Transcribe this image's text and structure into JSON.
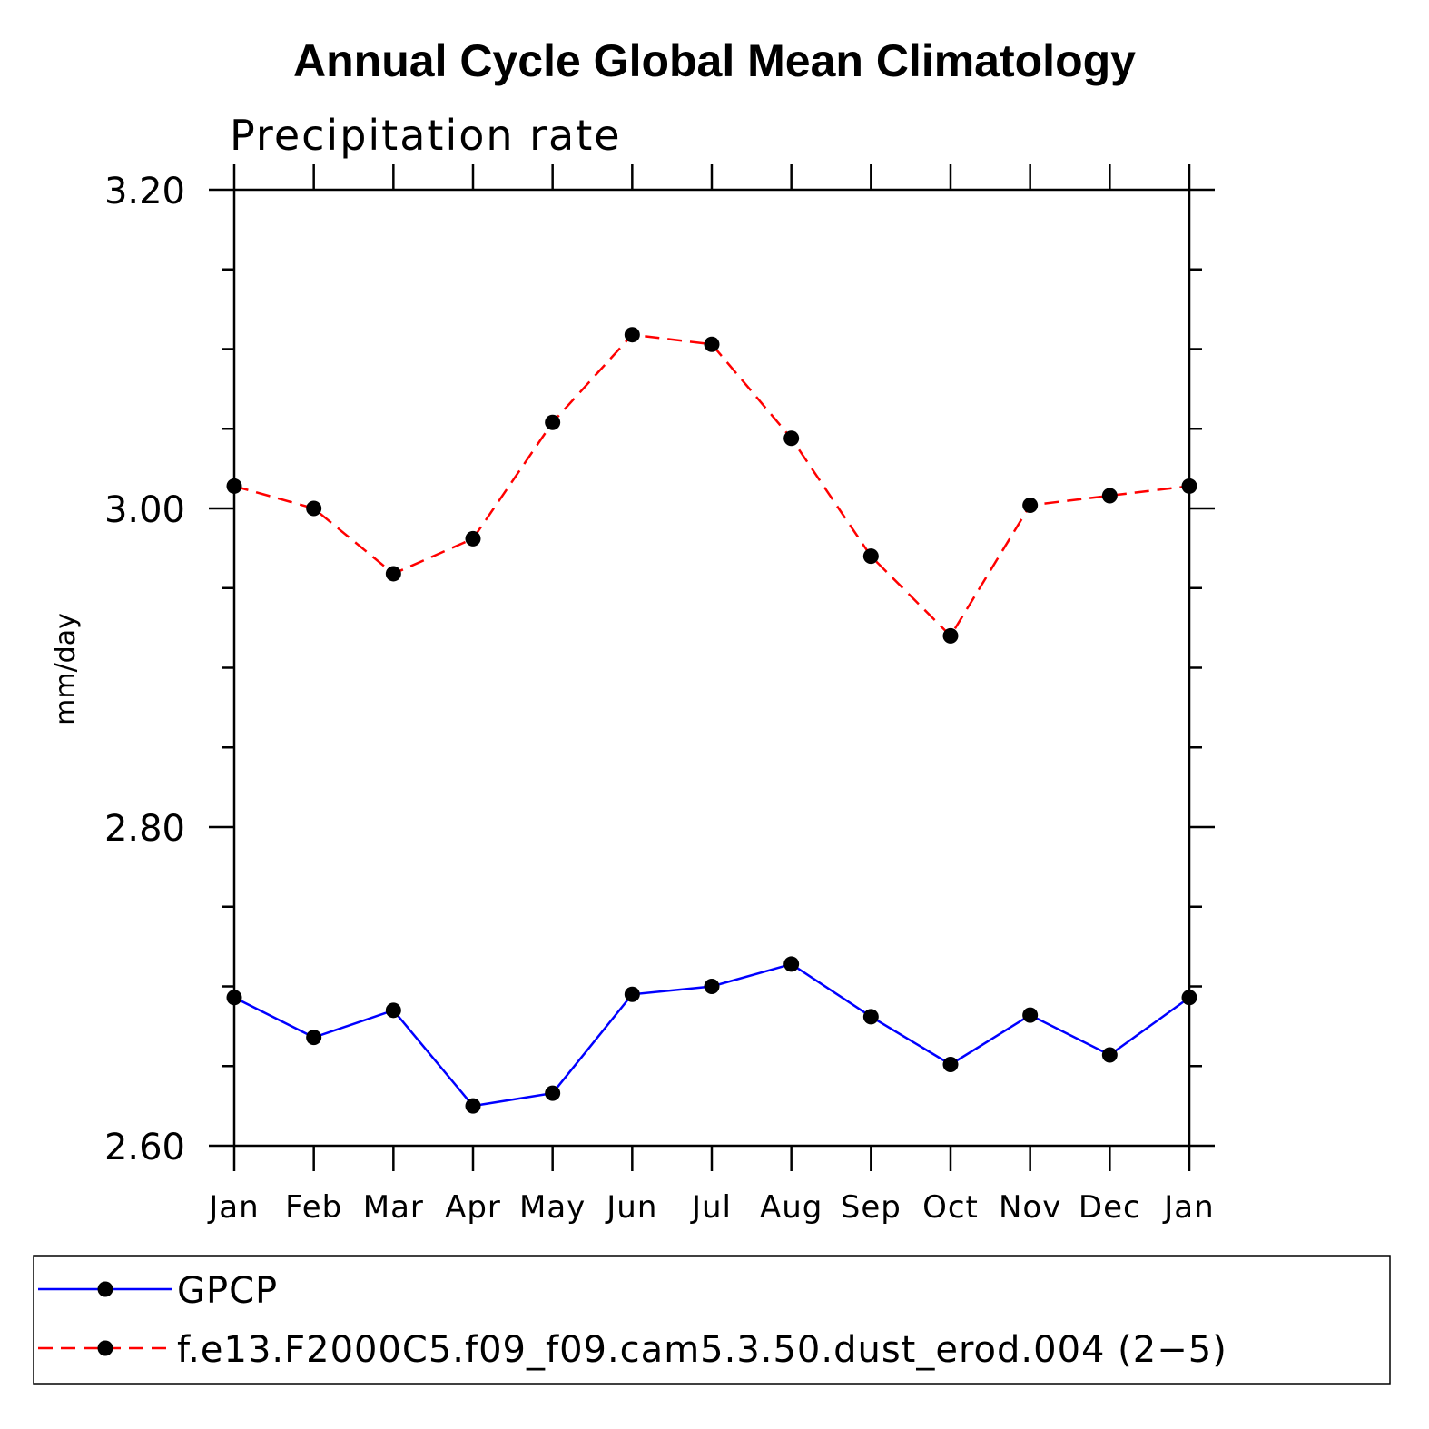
{
  "chart_data": {
    "type": "line",
    "title": "Annual Cycle Global Mean Climatology",
    "subtitle": "Precipitation rate",
    "ylabel": "mm/day",
    "xlabel": "",
    "ylim": [
      2.6,
      3.2
    ],
    "yticks": [
      "2.60",
      "2.80",
      "3.00",
      "3.20"
    ],
    "ytick_values": [
      2.6,
      2.8,
      3.0,
      3.2
    ],
    "categories": [
      "Jan",
      "Feb",
      "Mar",
      "Apr",
      "May",
      "Jun",
      "Jul",
      "Aug",
      "Sep",
      "Oct",
      "Nov",
      "Dec",
      "Jan"
    ],
    "legend_placement": "bottom",
    "grid": false,
    "series": [
      {
        "name": "GPCP",
        "color": "#0000ff",
        "dash": "solid",
        "values": [
          2.693,
          2.668,
          2.685,
          2.625,
          2.633,
          2.695,
          2.7,
          2.714,
          2.681,
          2.651,
          2.682,
          2.657,
          2.693
        ]
      },
      {
        "name": "f.e13.F2000C5.f09_f09.cam5.3.50.dust_erod.004 (2−5)",
        "color": "#ff0000",
        "dash": "dashed",
        "values": [
          3.014,
          3.0,
          2.959,
          2.981,
          3.054,
          3.109,
          3.103,
          3.044,
          2.97,
          2.92,
          3.002,
          3.008,
          3.014
        ]
      }
    ]
  }
}
